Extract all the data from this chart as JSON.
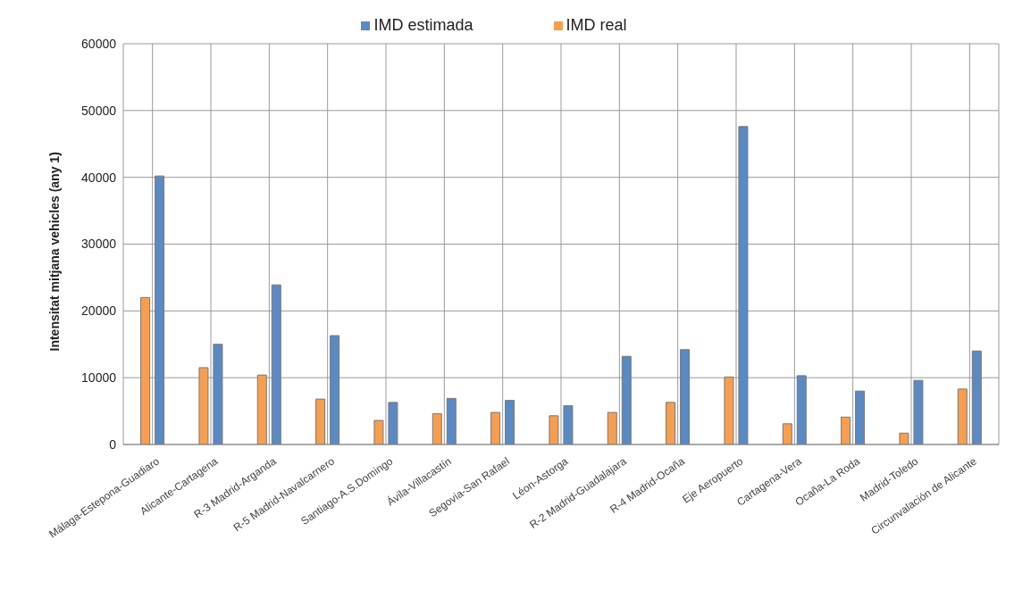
{
  "chart_data": {
    "type": "bar",
    "ylabel": "Intensitat mitjana vehicles  (any 1)",
    "categories": [
      "Málaga-Estepona-Guadiaro",
      "Alicante-Cartagena",
      "R-3 Madrid-Arganda",
      "R-5 Madrid-Navalcarnero",
      "Santiago-A.S.Domingo",
      "Ávila-Villacastín",
      "Segovia-San Rafael",
      "Léon-Astorga",
      "R-2 Madrid-Guadalajara",
      "R-4 Madrid-Ocaña",
      "Eje Aeropuerto",
      "Cartagena-Vera",
      "Ocaña-La Roda",
      "Madrid-Toledo",
      "Circunvalación de Alicante"
    ],
    "series": [
      {
        "name": "IMD real",
        "color": "#f79f4f",
        "values": [
          22000,
          11500,
          10400,
          6800,
          3600,
          4600,
          4800,
          4300,
          4800,
          6300,
          10100,
          3100,
          4100,
          1700,
          8300
        ]
      },
      {
        "name": "IMD estimada",
        "color": "#5a8ac4",
        "values": [
          40200,
          15000,
          23900,
          16300,
          6300,
          6900,
          6600,
          5800,
          13200,
          14200,
          47600,
          10300,
          8000,
          9600,
          14000
        ]
      }
    ],
    "ylim": [
      0,
      60000
    ],
    "yticks": [
      0,
      10000,
      20000,
      30000,
      40000,
      50000,
      60000
    ],
    "grid": true,
    "legend": "top"
  }
}
